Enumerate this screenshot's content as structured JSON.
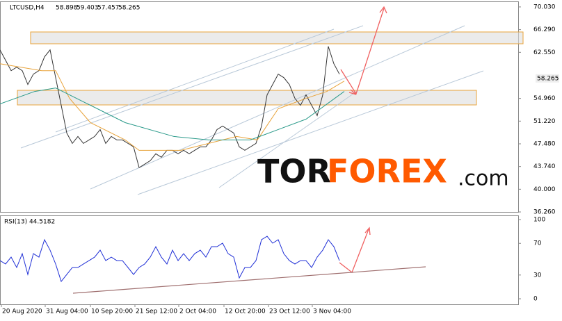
{
  "chart_data": [
    {
      "type": "line",
      "symbol": "LTCUSD,H4",
      "ohlc": [
        58.898,
        59.403,
        57.457,
        58.265
      ],
      "last_price": 58.265,
      "xlim": [
        0,
        745
      ],
      "ylim": [
        36.15,
        70.94
      ],
      "xticks": [
        {
          "value": 2,
          "label": "20 Aug 2020"
        },
        {
          "value": 65,
          "label": "31 Aug 04:00"
        },
        {
          "value": 130,
          "label": "10 Sep 20:00"
        },
        {
          "value": 194,
          "label": "21 Sep 12:00"
        },
        {
          "value": 257,
          "label": "2 Oct 04:00"
        },
        {
          "value": 322,
          "label": "12 Oct 20:00"
        },
        {
          "value": 386,
          "label": "23 Oct 12:00"
        },
        {
          "value": 449,
          "label": "3 Nov 04:00"
        }
      ],
      "yticks": [
        {
          "value": 70.03,
          "label": "70.030"
        },
        {
          "value": 66.29,
          "label": "66.290"
        },
        {
          "value": 62.55,
          "label": "62.550"
        },
        {
          "value": 54.96,
          "label": "54.960"
        },
        {
          "value": 51.22,
          "label": "51.220"
        },
        {
          "value": 47.48,
          "label": "47.480"
        },
        {
          "value": 43.74,
          "label": "43.740"
        },
        {
          "value": 40.0,
          "label": "40.000"
        },
        {
          "value": 36.26,
          "label": "36.260"
        }
      ],
      "watermark": [
        "TOR",
        "FOREX",
        ".com"
      ],
      "series": [
        {
          "color": "#333333",
          "x": [
            0,
            8,
            16,
            24,
            32,
            40,
            48,
            56,
            64,
            72,
            80,
            88,
            96,
            104,
            112,
            120,
            128,
            136,
            144,
            152,
            160,
            168,
            176,
            184,
            192,
            200,
            208,
            216,
            224,
            232,
            240,
            248,
            256,
            264,
            272,
            280,
            288,
            296,
            304,
            312,
            320,
            328,
            336,
            344,
            352,
            360,
            368,
            376,
            384,
            392,
            400,
            408,
            416,
            424,
            432,
            440,
            448,
            456,
            464,
            472,
            480,
            488
          ],
          "values": [
            62.95,
            61.24,
            59.53,
            60.1,
            59.53,
            57.25,
            58.96,
            59.53,
            61.81,
            62.95,
            58.39,
            53.83,
            49.26,
            47.55,
            48.69,
            47.55,
            48.12,
            48.69,
            49.83,
            47.55,
            48.69,
            48.12,
            48.12,
            47.55,
            46.98,
            43.56,
            44.13,
            44.7,
            45.84,
            45.27,
            46.41,
            46.41,
            45.84,
            46.41,
            45.84,
            46.41,
            46.98,
            46.98,
            48.12,
            49.83,
            50.4,
            49.83,
            49.26,
            46.98,
            46.41,
            46.98,
            47.55,
            50.4,
            55.54,
            57.25,
            58.96,
            58.39,
            57.25,
            54.97,
            53.83,
            55.54,
            53.83,
            52.12,
            55.54,
            63.52,
            60.67,
            58.96
          ]
        },
        {
          "color": "#e8a33a",
          "x": [
            0,
            60,
            80,
            100,
            130,
            180,
            200,
            260,
            300,
            340,
            370,
            400,
            440,
            470,
            495
          ],
          "values": [
            60.67,
            59.53,
            59.53,
            54.97,
            50.97,
            48.12,
            46.41,
            46.41,
            47.55,
            48.69,
            48.12,
            53.26,
            54.97,
            56.11,
            57.82
          ]
        },
        {
          "color": "#2a9a8a",
          "x": [
            0,
            50,
            80,
            130,
            180,
            250,
            300,
            360,
            400,
            440,
            495
          ],
          "values": [
            54.05,
            56.11,
            56.68,
            53.83,
            50.97,
            48.69,
            48.12,
            48.12,
            49.83,
            51.54,
            56.11
          ]
        }
      ]
    },
    {
      "type": "line",
      "label": "RSI(13) 44.5182",
      "xlim": [
        0,
        745
      ],
      "ylim": [
        -7,
        105.3
      ],
      "yticks": [
        100,
        70,
        30,
        0
      ],
      "series": [
        {
          "color": "#1f2fd6",
          "x": [
            0,
            8,
            16,
            24,
            32,
            40,
            48,
            56,
            64,
            72,
            80,
            88,
            96,
            104,
            112,
            120,
            128,
            136,
            144,
            152,
            160,
            168,
            176,
            184,
            192,
            200,
            208,
            216,
            224,
            232,
            240,
            248,
            256,
            264,
            272,
            280,
            288,
            296,
            304,
            312,
            320,
            328,
            336,
            344,
            352,
            360,
            368,
            376,
            384,
            392,
            400,
            408,
            416,
            424,
            432,
            440,
            448,
            456,
            464,
            472,
            480,
            488
          ],
          "values": [
            48.2,
            43.9,
            52.6,
            39.5,
            57.0,
            30.7,
            57.0,
            52.6,
            74.6,
            61.4,
            43.9,
            21.9,
            30.7,
            39.5,
            39.5,
            43.9,
            48.2,
            52.6,
            61.4,
            48.2,
            52.6,
            48.2,
            48.2,
            39.5,
            30.7,
            39.5,
            43.9,
            52.6,
            65.8,
            52.6,
            43.9,
            61.4,
            48.2,
            57.0,
            48.2,
            57.0,
            61.4,
            52.6,
            65.8,
            65.8,
            70.2,
            57.0,
            52.6,
            26.3,
            39.5,
            39.5,
            48.2,
            74.6,
            78.9,
            70.2,
            74.6,
            57.0,
            48.2,
            43.9,
            48.2,
            48.2,
            39.5,
            52.6,
            61.4,
            74.6,
            65.8,
            48.2
          ]
        }
      ]
    }
  ]
}
